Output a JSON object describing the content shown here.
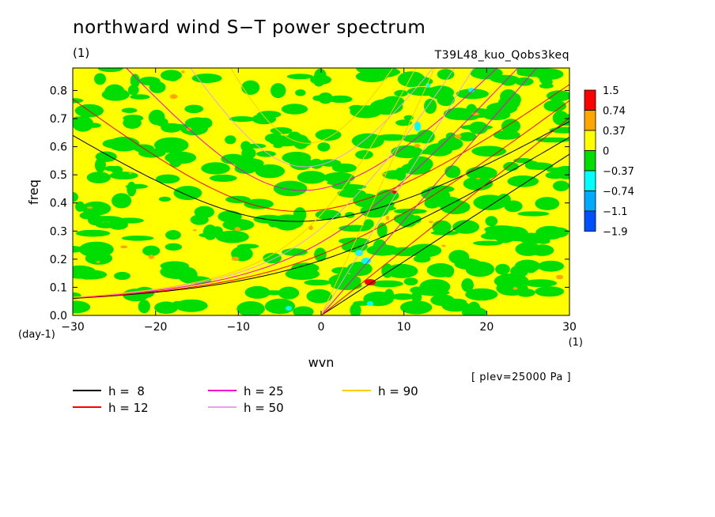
{
  "title": "northward wind S−T power spectrum",
  "unit_label": "(1)",
  "run_id": "T39L48_kuo_Qobs3keq",
  "plev_note": "[ plev=25000 Pa ]",
  "chart_data": {
    "type": "heatmap",
    "title": "northward wind S−T power spectrum",
    "xlabel": "wvn",
    "ylabel": "freq",
    "x_unit": "(1)",
    "y_unit": "(day-1)",
    "xlim": [
      -30,
      30
    ],
    "ylim": [
      0,
      0.88
    ],
    "x_ticks": [
      -30,
      -20,
      -10,
      0,
      10,
      20,
      30
    ],
    "x_tick_labels": [
      "−30",
      "−20",
      "−10",
      "0",
      "10",
      "20",
      "30"
    ],
    "y_ticks": [
      0.0,
      0.1,
      0.2,
      0.3,
      0.4,
      0.5,
      0.6,
      0.7,
      0.8
    ],
    "y_tick_labels": [
      "0.0",
      "0.1",
      "0.2",
      "0.3",
      "0.4",
      "0.5",
      "0.6",
      "0.7",
      "0.8"
    ],
    "colorbar": {
      "labels": [
        "1.5",
        "0.74",
        "0.37",
        "0",
        "−0.37",
        "−0.74",
        "−1.1",
        "−1.9"
      ],
      "colors": [
        "#ff0000",
        "#ffa500",
        "#ffff00",
        "#00dd00",
        "#00ffff",
        "#00aaff",
        "#0050ff"
      ]
    },
    "dispersion_curves": [
      {
        "label": "h =  8",
        "color": "#000000"
      },
      {
        "label": "h = 12",
        "color": "#ff0000"
      },
      {
        "label": "h = 25",
        "color": "#ff00cc"
      },
      {
        "label": "h = 50",
        "color": "#e8a0e8"
      },
      {
        "label": "h = 90",
        "color": "#ffcc00"
      }
    ],
    "legend_position": "bottom",
    "grid": false
  }
}
